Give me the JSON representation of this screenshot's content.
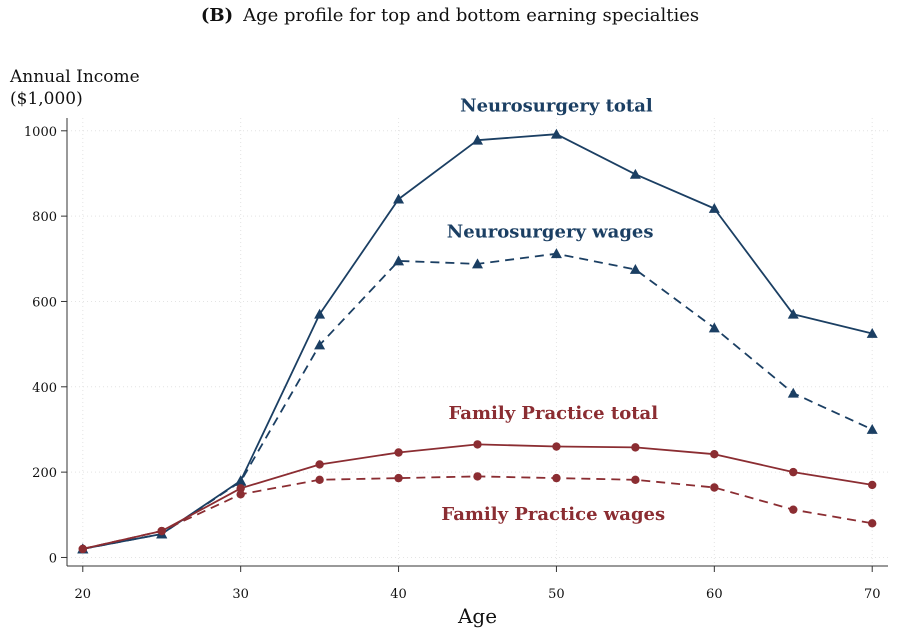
{
  "chart_data": {
    "type": "line",
    "panel_label": "(B)",
    "title": "Age profile for top and bottom earning specialties",
    "ylabel_line1": "Annual Income",
    "ylabel_line2": "($1,000)",
    "xlabel": "Age",
    "xlim": [
      19,
      71
    ],
    "ylim": [
      -20,
      1030
    ],
    "x_ticks": [
      20,
      30,
      40,
      50,
      60,
      70
    ],
    "y_ticks": [
      0,
      200,
      400,
      600,
      800,
      1000
    ],
    "grid": true,
    "x": [
      20,
      25,
      30,
      35,
      40,
      45,
      50,
      55,
      60,
      65,
      70
    ],
    "series": [
      {
        "name": "Neurosurgery total",
        "color": "#1b3f63",
        "dash": "solid",
        "marker": "triangle",
        "values": [
          20,
          55,
          180,
          570,
          840,
          978,
          992,
          898,
          818,
          570,
          525
        ]
      },
      {
        "name": "Neurosurgery wages",
        "color": "#1b3f63",
        "dash": "dashed",
        "marker": "triangle",
        "values": [
          20,
          55,
          178,
          498,
          695,
          688,
          712,
          675,
          538,
          385,
          300
        ]
      },
      {
        "name": "Family Practice total",
        "color": "#8b2d32",
        "dash": "solid",
        "marker": "circle",
        "values": [
          20,
          62,
          162,
          218,
          246,
          265,
          260,
          258,
          242,
          200,
          170
        ]
      },
      {
        "name": "Family Practice wages",
        "color": "#8b2d32",
        "dash": "dashed",
        "marker": "circle",
        "values": [
          20,
          62,
          148,
          182,
          186,
          190,
          186,
          182,
          164,
          112,
          80
        ]
      }
    ],
    "annotations": [
      {
        "text": "Neurosurgery total",
        "x": 50,
        "y": 1045,
        "color": "#1b3f63"
      },
      {
        "text": "Neurosurgery wages",
        "x": 49.6,
        "y": 750,
        "color": "#1b3f63"
      },
      {
        "text": "Family Practice total",
        "x": 49.8,
        "y": 325,
        "color": "#8b2d32"
      },
      {
        "text": "Family Practice wages",
        "x": 49.8,
        "y": 88,
        "color": "#8b2d32"
      }
    ]
  }
}
